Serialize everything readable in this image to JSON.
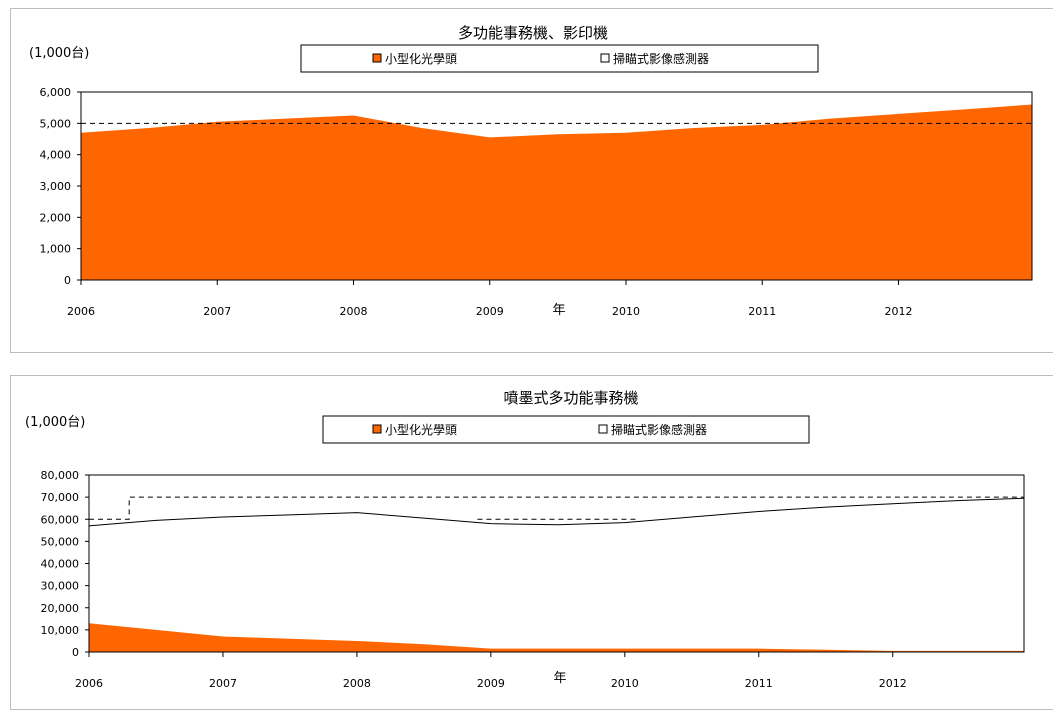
{
  "chart_data": [
    {
      "type": "area",
      "title": "多功能事務機、影印機",
      "ylabel": "(1,000台)",
      "xlabel": "年",
      "ylim": [
        0,
        6000
      ],
      "y_ticks": [
        "6,000",
        "5,000",
        "4,000",
        "3,000",
        "2,000",
        "1,000",
        "0"
      ],
      "x_ticks": [
        "2006",
        "2007",
        "2008",
        "2009",
        "2010",
        "2011",
        "2012"
      ],
      "legend": "top",
      "x": [
        2006.0,
        2006.5,
        2007.0,
        2007.5,
        2008.0,
        2008.5,
        2009.0,
        2009.5,
        2010.0,
        2010.5,
        2011.0,
        2011.5,
        2012.0,
        2012.5,
        2012.98
      ],
      "series": [
        {
          "name": "小型化光學頭",
          "style": "filled",
          "color": "#ff6600",
          "values": [
            4700,
            4850,
            5050,
            5150,
            5250,
            4850,
            4550,
            4650,
            4700,
            4850,
            4950,
            5150,
            5300,
            5450,
            5600
          ]
        },
        {
          "name": "掃瞄式影像感測器",
          "style": "dashed",
          "color": "#000000",
          "values": [
            5000,
            5000,
            5000,
            5000,
            5000,
            5000,
            5000,
            5000,
            5000,
            5000,
            5000,
            5000,
            5000,
            5000,
            5000
          ]
        }
      ],
      "grid": false
    },
    {
      "type": "area",
      "title": "噴墨式多功能事務機",
      "ylabel": "(1,000台)",
      "xlabel": "年",
      "ylim": [
        0,
        80000
      ],
      "y_ticks": [
        "80,000",
        "70,000",
        "60,000",
        "50,000",
        "40,000",
        "30,000",
        "20,000",
        "10,000",
        "0"
      ],
      "x_ticks": [
        "2006",
        "2007",
        "2008",
        "2009",
        "2010",
        "2011",
        "2012"
      ],
      "legend": "top",
      "x": [
        2006.0,
        2006.5,
        2007.0,
        2007.5,
        2008.0,
        2008.5,
        2009.0,
        2009.5,
        2010.0,
        2010.5,
        2011.0,
        2011.5,
        2012.0,
        2012.5,
        2012.98
      ],
      "series": [
        {
          "name": "小型化光學頭",
          "style": "filled",
          "color": "#ff6600",
          "values": [
            13000,
            10000,
            7000,
            6000,
            5000,
            3500,
            1500,
            1500,
            1500,
            1500,
            1500,
            1000,
            500,
            500,
            500
          ]
        },
        {
          "name": "掃瞄式影像感測器",
          "style": "line",
          "color": "#000000",
          "values": [
            57000,
            59500,
            61000,
            62000,
            63000,
            60500,
            58000,
            57500,
            58500,
            61000,
            63500,
            65500,
            67000,
            68500,
            69500
          ]
        },
        {
          "name": "",
          "style": "dashed",
          "color": "#000000",
          "x": [
            2006.0,
            2006.3,
            2006.3,
            2012.98
          ],
          "values": [
            60000,
            60000,
            70000,
            70000
          ]
        },
        {
          "name": "",
          "style": "dashed",
          "color": "#000000",
          "x": [
            2008.9,
            2010.1
          ],
          "values": [
            60000,
            60000
          ]
        }
      ],
      "grid": false
    }
  ]
}
